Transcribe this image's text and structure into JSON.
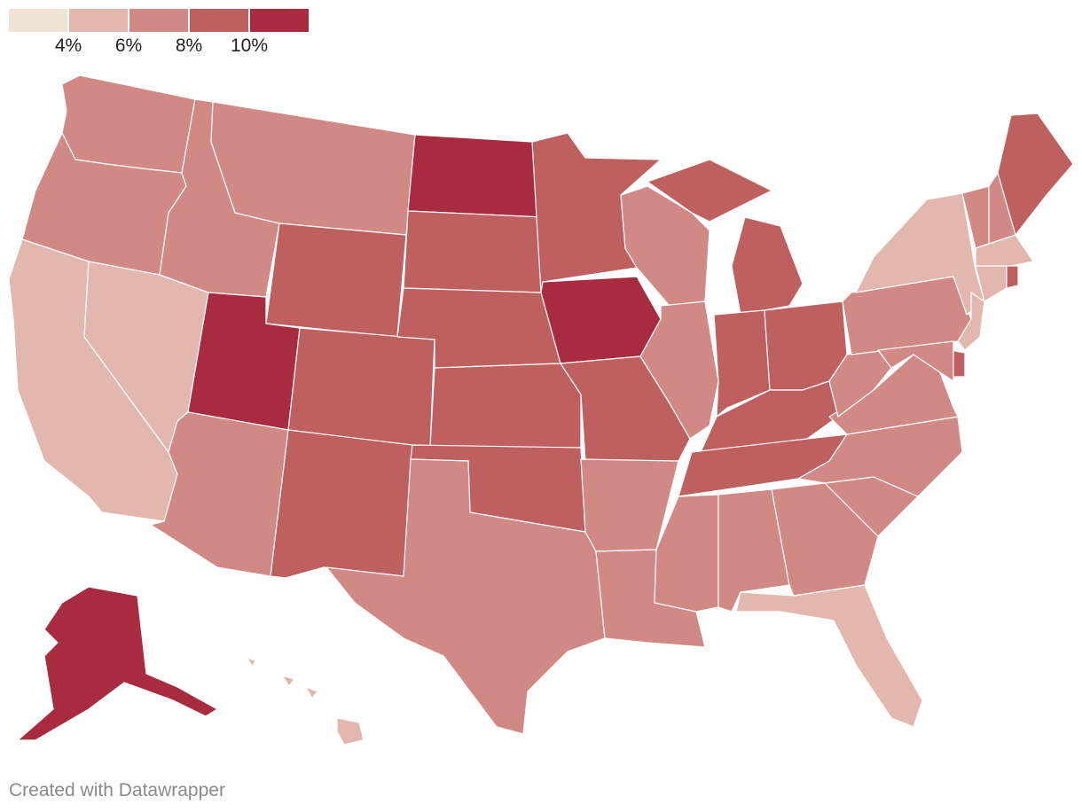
{
  "legend": {
    "colors": [
      "#f1e4d7",
      "#e2b7ae",
      "#d08984",
      "#be5f60",
      "#a82b3f"
    ],
    "ticks": [
      "4%",
      "6%",
      "8%",
      "10%"
    ]
  },
  "credit": "Created with Datawrapper",
  "states": [
    {
      "id": "WA",
      "bin": 2
    },
    {
      "id": "OR",
      "bin": 2
    },
    {
      "id": "CA",
      "bin": 1
    },
    {
      "id": "NV",
      "bin": 1
    },
    {
      "id": "ID",
      "bin": 2
    },
    {
      "id": "MT",
      "bin": 2
    },
    {
      "id": "WY",
      "bin": 3
    },
    {
      "id": "UT",
      "bin": 4
    },
    {
      "id": "AZ",
      "bin": 2
    },
    {
      "id": "CO",
      "bin": 3
    },
    {
      "id": "NM",
      "bin": 3
    },
    {
      "id": "ND",
      "bin": 4
    },
    {
      "id": "SD",
      "bin": 3
    },
    {
      "id": "NE",
      "bin": 3
    },
    {
      "id": "KS",
      "bin": 3
    },
    {
      "id": "OK",
      "bin": 3
    },
    {
      "id": "TX",
      "bin": 2
    },
    {
      "id": "MN",
      "bin": 3
    },
    {
      "id": "IA",
      "bin": 4
    },
    {
      "id": "MO",
      "bin": 3
    },
    {
      "id": "AR",
      "bin": 2
    },
    {
      "id": "LA",
      "bin": 2
    },
    {
      "id": "WI",
      "bin": 2
    },
    {
      "id": "IL",
      "bin": 2
    },
    {
      "id": "MI",
      "bin": 3
    },
    {
      "id": "IN",
      "bin": 3
    },
    {
      "id": "OH",
      "bin": 3
    },
    {
      "id": "KY",
      "bin": 3
    },
    {
      "id": "TN",
      "bin": 3
    },
    {
      "id": "MS",
      "bin": 2
    },
    {
      "id": "AL",
      "bin": 2
    },
    {
      "id": "GA",
      "bin": 2
    },
    {
      "id": "FL",
      "bin": 1
    },
    {
      "id": "SC",
      "bin": 2
    },
    {
      "id": "NC",
      "bin": 2
    },
    {
      "id": "VA",
      "bin": 2
    },
    {
      "id": "WV",
      "bin": 2
    },
    {
      "id": "PA",
      "bin": 2
    },
    {
      "id": "NY",
      "bin": 1
    },
    {
      "id": "VT",
      "bin": 2
    },
    {
      "id": "NH",
      "bin": 2
    },
    {
      "id": "ME",
      "bin": 3
    },
    {
      "id": "MA",
      "bin": 1
    },
    {
      "id": "RI",
      "bin": 3
    },
    {
      "id": "CT",
      "bin": 1
    },
    {
      "id": "NJ",
      "bin": 1
    },
    {
      "id": "DE",
      "bin": 3
    },
    {
      "id": "MD",
      "bin": 2
    },
    {
      "id": "AK",
      "bin": 4
    },
    {
      "id": "HI",
      "bin": 1
    }
  ]
}
